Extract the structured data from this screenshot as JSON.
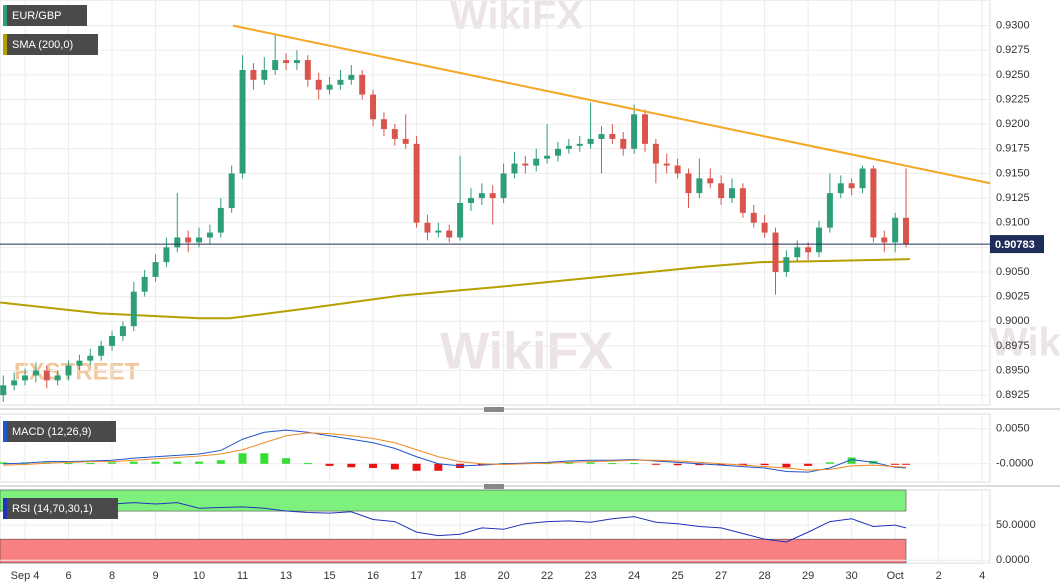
{
  "chart_data": {
    "type": "candlestick",
    "title": "EUR/GBP",
    "up_color": "#2e9e78",
    "down_color": "#d9544d",
    "x": [
      -0.5,
      -0.25,
      0,
      0.25,
      0.5,
      0.75,
      1,
      1.25,
      1.5,
      1.75,
      2,
      2.25,
      2.5,
      2.75,
      3,
      3.25,
      3.5,
      3.75,
      4,
      4.25,
      4.5,
      4.75,
      5,
      5.25,
      5.5,
      5.75,
      6,
      6.25,
      6.5,
      6.75,
      7,
      7.25,
      7.5,
      7.75,
      8,
      8.25,
      8.5,
      8.75,
      9,
      9.25,
      9.5,
      9.75,
      10,
      10.25,
      10.5,
      10.75,
      11,
      11.25,
      11.5,
      11.75,
      12,
      12.25,
      12.5,
      12.75,
      13,
      13.25,
      13.5,
      13.75,
      14,
      14.25,
      14.5,
      14.75,
      15,
      15.25,
      15.5,
      15.75,
      16,
      16.25,
      16.5,
      16.75,
      17,
      17.25,
      17.5,
      17.75,
      18,
      18.25,
      18.5,
      18.75,
      19,
      19.25,
      19.5,
      19.75,
      20,
      20.25
    ],
    "open": [
      0.8925,
      0.8935,
      0.894,
      0.8945,
      0.895,
      0.894,
      0.8945,
      0.8955,
      0.896,
      0.8965,
      0.8975,
      0.8985,
      0.8995,
      0.903,
      0.9045,
      0.906,
      0.9075,
      0.9085,
      0.908,
      0.9085,
      0.909,
      0.9115,
      0.915,
      0.9255,
      0.9245,
      0.9255,
      0.9265,
      0.9262,
      0.9265,
      0.9245,
      0.9235,
      0.924,
      0.9245,
      0.925,
      0.923,
      0.9205,
      0.9195,
      0.9185,
      0.918,
      0.91,
      0.909,
      0.9092,
      0.9085,
      0.912,
      0.9125,
      0.913,
      0.9125,
      0.915,
      0.916,
      0.9158,
      0.9165,
      0.9168,
      0.9175,
      0.9178,
      0.918,
      0.9185,
      0.919,
      0.9185,
      0.9175,
      0.921,
      0.918,
      0.916,
      0.9158,
      0.915,
      0.913,
      0.9145,
      0.914,
      0.9125,
      0.9135,
      0.911,
      0.91,
      0.909,
      0.905,
      0.9065,
      0.9075,
      0.907,
      0.9095,
      0.913,
      0.914,
      0.9135,
      0.9155,
      0.9085,
      0.908,
      0.9105
    ],
    "high": [
      0.8945,
      0.8948,
      0.8952,
      0.8958,
      0.8955,
      0.895,
      0.896,
      0.8966,
      0.8972,
      0.898,
      0.899,
      0.9,
      0.904,
      0.9052,
      0.9068,
      0.9085,
      0.913,
      0.9092,
      0.9095,
      0.9098,
      0.9125,
      0.9158,
      0.927,
      0.9262,
      0.9268,
      0.929,
      0.9272,
      0.9275,
      0.927,
      0.9252,
      0.9248,
      0.9255,
      0.926,
      0.9255,
      0.9235,
      0.9212,
      0.92,
      0.921,
      0.9188,
      0.9108,
      0.91,
      0.9098,
      0.9168,
      0.9135,
      0.914,
      0.9138,
      0.916,
      0.9172,
      0.9168,
      0.9175,
      0.92,
      0.9182,
      0.9185,
      0.9188,
      0.9222,
      0.9198,
      0.92,
      0.9192,
      0.922,
      0.9215,
      0.9185,
      0.917,
      0.9165,
      0.9155,
      0.9165,
      0.9155,
      0.9148,
      0.9145,
      0.914,
      0.9118,
      0.9108,
      0.9095,
      0.9072,
      0.9082,
      0.908,
      0.9102,
      0.915,
      0.9148,
      0.9145,
      0.9158,
      0.9158,
      0.9092,
      0.911,
      0.9155
    ],
    "low": [
      0.8918,
      0.893,
      0.8935,
      0.8938,
      0.8932,
      0.8935,
      0.894,
      0.895,
      0.8955,
      0.896,
      0.897,
      0.898,
      0.899,
      0.9025,
      0.904,
      0.9055,
      0.907,
      0.907,
      0.9075,
      0.9078,
      0.9085,
      0.911,
      0.9145,
      0.9235,
      0.924,
      0.925,
      0.9255,
      0.9255,
      0.9238,
      0.9225,
      0.923,
      0.9235,
      0.924,
      0.9225,
      0.9198,
      0.9188,
      0.9178,
      0.9175,
      0.9095,
      0.9082,
      0.9085,
      0.908,
      0.9082,
      0.9112,
      0.9118,
      0.9098,
      0.912,
      0.9145,
      0.915,
      0.9152,
      0.916,
      0.9162,
      0.917,
      0.9172,
      0.9175,
      0.915,
      0.918,
      0.9168,
      0.917,
      0.9172,
      0.914,
      0.915,
      0.9145,
      0.9115,
      0.9125,
      0.9135,
      0.9118,
      0.912,
      0.9105,
      0.9095,
      0.9085,
      0.9027,
      0.9045,
      0.906,
      0.9062,
      0.9065,
      0.909,
      0.9125,
      0.9128,
      0.913,
      0.908,
      0.907,
      0.907,
      0.9075
    ],
    "close": [
      0.8935,
      0.894,
      0.8945,
      0.895,
      0.894,
      0.8945,
      0.8955,
      0.896,
      0.8965,
      0.8975,
      0.8985,
      0.8995,
      0.903,
      0.9045,
      0.906,
      0.9075,
      0.9085,
      0.908,
      0.9085,
      0.909,
      0.9115,
      0.915,
      0.9255,
      0.9245,
      0.9255,
      0.9265,
      0.9262,
      0.9265,
      0.9245,
      0.9235,
      0.924,
      0.9245,
      0.925,
      0.923,
      0.9205,
      0.9195,
      0.9185,
      0.918,
      0.91,
      0.909,
      0.9092,
      0.9085,
      0.912,
      0.9125,
      0.913,
      0.9125,
      0.915,
      0.916,
      0.9158,
      0.9165,
      0.9168,
      0.9175,
      0.9178,
      0.918,
      0.9185,
      0.919,
      0.9185,
      0.9175,
      0.921,
      0.918,
      0.916,
      0.9158,
      0.915,
      0.913,
      0.9145,
      0.914,
      0.9125,
      0.9135,
      0.911,
      0.91,
      0.909,
      0.905,
      0.9065,
      0.9075,
      0.907,
      0.9095,
      0.913,
      0.914,
      0.9135,
      0.9155,
      0.9085,
      0.908,
      0.9105,
      0.9078
    ],
    "xlim": [
      -0.575,
      22.18
    ],
    "xticks": [
      {
        "value": 0,
        "label": "Sep 4"
      },
      {
        "value": 1,
        "label": "6"
      },
      {
        "value": 2,
        "label": "8"
      },
      {
        "value": 3,
        "label": "9"
      },
      {
        "value": 4,
        "label": "10"
      },
      {
        "value": 5,
        "label": "11"
      },
      {
        "value": 6,
        "label": "13"
      },
      {
        "value": 7,
        "label": "15"
      },
      {
        "value": 8,
        "label": "16"
      },
      {
        "value": 9,
        "label": "17"
      },
      {
        "value": 10,
        "label": "18"
      },
      {
        "value": 11,
        "label": "20"
      },
      {
        "value": 12,
        "label": "22"
      },
      {
        "value": 13,
        "label": "23"
      },
      {
        "value": 14,
        "label": "24"
      },
      {
        "value": 15,
        "label": "25"
      },
      {
        "value": 16,
        "label": "27"
      },
      {
        "value": 17,
        "label": "28"
      },
      {
        "value": 18,
        "label": "29"
      },
      {
        "value": 19,
        "label": "30"
      },
      {
        "value": 20,
        "label": "Oct"
      },
      {
        "value": 21,
        "label": "2"
      },
      {
        "value": 22,
        "label": "4"
      }
    ],
    "ylim": [
      0.8915,
      0.9326
    ],
    "yticks": [
      {
        "value": 0.8925,
        "label": "0.8925"
      },
      {
        "value": 0.895,
        "label": "0.8950"
      },
      {
        "value": 0.8975,
        "label": "0.8975"
      },
      {
        "value": 0.9,
        "label": "0.9000"
      },
      {
        "value": 0.9025,
        "label": "0.9025"
      },
      {
        "value": 0.905,
        "label": "0.9050"
      },
      {
        "value": 0.9075,
        "label": "0.9075"
      },
      {
        "value": 0.91,
        "label": "0.9100"
      },
      {
        "value": 0.9125,
        "label": "0.9125"
      },
      {
        "value": 0.915,
        "label": "0.9150"
      },
      {
        "value": 0.9175,
        "label": "0.9175"
      },
      {
        "value": 0.92,
        "label": "0.9200"
      },
      {
        "value": 0.9225,
        "label": "0.9225"
      },
      {
        "value": 0.925,
        "label": "0.9250"
      },
      {
        "value": 0.9275,
        "label": "0.9275"
      },
      {
        "value": 0.93,
        "label": "0.9300"
      }
    ],
    "grid": true,
    "last_price": 0.90783,
    "last_price_color": "#1f2d5a",
    "sma": {
      "name": "SMA (200,0)",
      "color": "#b5a000",
      "x": [
        -0.57,
        1.72,
        4.02,
        4.71,
        6.32,
        8.62,
        10.92,
        13.22,
        15.52,
        16.9,
        18.28,
        20.34
      ],
      "values": [
        0.9019,
        0.9008,
        0.9003,
        0.9003,
        0.9012,
        0.9026,
        0.9035,
        0.9045,
        0.9055,
        0.906,
        0.9061,
        0.9063
      ]
    },
    "trendline": {
      "color": "#f5a623",
      "x": [
        4.78,
        22.18
      ],
      "values": [
        0.93,
        0.914
      ]
    },
    "macd": {
      "name": "MACD (12,26,9)",
      "ylim": [
        -0.0026,
        0.0071
      ],
      "yticks": [
        {
          "value": 0,
          "label": "-0.0000"
        },
        {
          "value": 0.005,
          "label": "0.0050"
        }
      ],
      "x": [
        -0.5,
        0,
        0.5,
        1,
        1.5,
        2,
        2.5,
        3,
        3.5,
        4,
        4.5,
        5,
        5.5,
        6,
        6.5,
        7,
        7.5,
        8,
        8.5,
        9,
        9.5,
        10,
        10.5,
        11,
        11.5,
        12,
        12.5,
        13,
        13.5,
        14,
        14.5,
        15,
        15.5,
        16,
        16.5,
        17,
        17.5,
        18,
        18.5,
        19,
        19.5,
        20,
        20.25
      ],
      "macd": {
        "color": "#2255cc",
        "values": [
          0,
          0.0001,
          0.0003,
          0.0003,
          0.0004,
          0.0005,
          0.0008,
          0.001,
          0.0012,
          0.0014,
          0.0019,
          0.0035,
          0.0045,
          0.0048,
          0.0045,
          0.004,
          0.0035,
          0.003,
          0.0022,
          0.001,
          0,
          -0.0003,
          -0.0002,
          0,
          0.0001,
          0.0002,
          0.0004,
          0.0005,
          0.0005,
          0.0006,
          0.0004,
          0.0002,
          0,
          -0.0002,
          -0.0004,
          -0.0006,
          -0.0011,
          -0.0012,
          -0.0006,
          0.0006,
          0.0002,
          -0.0005,
          -0.0006
        ]
      },
      "signal": {
        "color": "#f08a24",
        "values": [
          -0.0002,
          -0.0001,
          0.0001,
          0.0002,
          0.0003,
          0.0003,
          0.0005,
          0.0007,
          0.0009,
          0.0011,
          0.0014,
          0.002,
          0.003,
          0.004,
          0.0044,
          0.0043,
          0.004,
          0.0036,
          0.003,
          0.002,
          0.001,
          0.0003,
          0,
          -0.0001,
          0,
          0.0001,
          0.0002,
          0.0003,
          0.0004,
          0.0005,
          0.0005,
          0.0004,
          0.0002,
          0,
          -0.0002,
          -0.0004,
          -0.0006,
          -0.0009,
          -0.0008,
          -0.0003,
          -0.0002,
          -0.0004,
          -0.0005
        ]
      },
      "histogram": {
        "up_color": "#33dd33",
        "down_color": "#ee1111",
        "values": [
          0.0002,
          0.0002,
          0.0002,
          0.0001,
          0.0001,
          0.0002,
          0.0003,
          0.0003,
          0.0003,
          0.0003,
          0.0005,
          0.0015,
          0.0015,
          0.0008,
          0.0001,
          -0.0003,
          -0.0005,
          -0.0006,
          -0.0008,
          -0.001,
          -0.001,
          -0.0006,
          -0.0002,
          0.0001,
          0.0001,
          0.0001,
          0.0002,
          0.0002,
          0.0001,
          0.0001,
          -0.0001,
          -0.0002,
          -0.0002,
          -0.0002,
          -0.0002,
          -0.0002,
          -0.0005,
          -0.0003,
          0.0002,
          0.0009,
          0.0004,
          -0.0001,
          -0.0001
        ]
      }
    },
    "rsi": {
      "name": "RSI (14,70,30,1)",
      "color": "#2233bb",
      "ylim": [
        -4,
        100
      ],
      "yticks": [
        {
          "value": 0,
          "label": "0.0000"
        },
        {
          "value": 50,
          "label": "50.0000"
        }
      ],
      "overbought": 70,
      "oversold": 30,
      "overbought_color": "#7ef07e",
      "oversold_color": "#f88080",
      "x": [
        -0.5,
        0,
        0.5,
        1,
        1.5,
        2,
        2.5,
        3,
        3.5,
        4,
        4.5,
        5,
        5.5,
        6,
        6.5,
        7,
        7.5,
        8,
        8.5,
        9,
        9.5,
        10,
        10.5,
        11,
        11.5,
        12,
        12.5,
        13,
        13.5,
        14,
        14.5,
        15,
        15.5,
        16,
        16.5,
        17,
        17.5,
        18,
        18.5,
        19,
        19.5,
        20,
        20.25
      ],
      "values": [
        78,
        80,
        76,
        79,
        77,
        80,
        82,
        80,
        82,
        74,
        75,
        76,
        74,
        70,
        68,
        67,
        69,
        58,
        55,
        40,
        35,
        37,
        46,
        44,
        52,
        55,
        56,
        54,
        59,
        62,
        54,
        52,
        48,
        46,
        38,
        30,
        26,
        40,
        55,
        59,
        48,
        50,
        46
      ]
    },
    "watermark": "WikiFX",
    "logo": "FXSTREET"
  }
}
